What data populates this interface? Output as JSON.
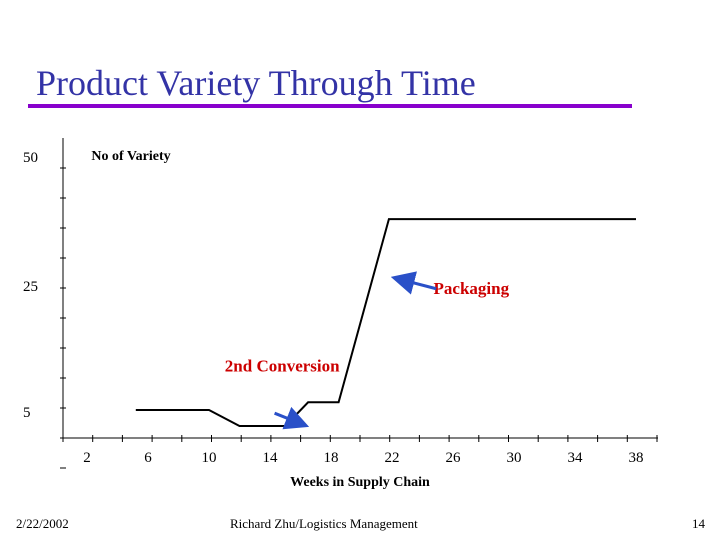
{
  "slide": {
    "title": "Product Variety Through Time",
    "title_color": "#3333a6",
    "rule_color": "#8800cc"
  },
  "footer": {
    "date": "2/22/2002",
    "author": "Richard Zhu/Logistics Management",
    "page": "14"
  },
  "chart_data": {
    "type": "line",
    "title": "",
    "xlabel": "Weeks in Supply Chain",
    "ylabel": "No of Variety",
    "x_ticks": [
      2,
      6,
      10,
      14,
      18,
      22,
      26,
      30,
      34,
      38
    ],
    "y_tick_labels": [
      {
        "value": 50,
        "label": "50"
      },
      {
        "value": 25,
        "label": "25"
      },
      {
        "value": 5,
        "label": "5"
      }
    ],
    "series": [
      {
        "color": "#000000",
        "points": [
          {
            "x": 5.2,
            "y": 5
          },
          {
            "x": 10,
            "y": 5
          },
          {
            "x": 12,
            "y": 2.5
          },
          {
            "x": 15,
            "y": 2.5
          },
          {
            "x": 16.5,
            "y": 6.5
          },
          {
            "x": 18.5,
            "y": 6.5
          },
          {
            "x": 21.8,
            "y": 42
          },
          {
            "x": 38,
            "y": 42
          }
        ]
      }
    ],
    "annotations": [
      {
        "text": "2nd Conversion",
        "color": "#cc0000",
        "x": 14.8,
        "y": 12.5,
        "arrow_from": {
          "x": 14.3,
          "y": 4.5
        },
        "arrow_to": {
          "x": 16.2,
          "y": 2.7
        }
      },
      {
        "text": "Packaging",
        "color": "#cc0000",
        "x": 27.2,
        "y": 27.5,
        "arrow_from": {
          "x": 24.9,
          "y": 28.5
        },
        "arrow_to": {
          "x": 22.3,
          "y": 30.5
        }
      }
    ],
    "arrow_color": "#2a50c8"
  }
}
